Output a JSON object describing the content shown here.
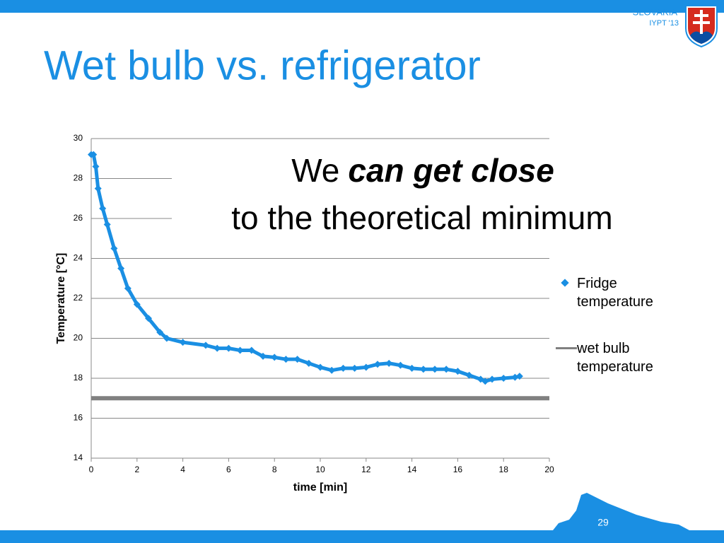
{
  "slide": {
    "title": "Wet bulb vs. refrigerator",
    "country": "SLOVAKIA",
    "event": "IYPT '13",
    "page_number": "29"
  },
  "chart_data": {
    "type": "line",
    "annotation": [
      "We",
      "can get close",
      "to the theoretical minimum"
    ],
    "x_label": "time [min]",
    "y_label": "Temperature [°C]",
    "xlim": [
      0,
      20
    ],
    "xticks": [
      0,
      2,
      4,
      6,
      8,
      10,
      12,
      14,
      16,
      18,
      20
    ],
    "ylim": [
      14,
      30
    ],
    "yticks": [
      14,
      16,
      18,
      20,
      22,
      24,
      26,
      28,
      30
    ],
    "grid": true,
    "legend": "right",
    "series": [
      {
        "name": "Fridge temperature",
        "color": "#1a8fe3",
        "marker": "diamond",
        "x": [
          0,
          0.1,
          0.2,
          0.3,
          0.5,
          0.7,
          1.0,
          1.3,
          1.6,
          2.0,
          2.5,
          3.0,
          3.3,
          4,
          5,
          5.5,
          6,
          6.5,
          7,
          7.5,
          8,
          8.5,
          9,
          9.5,
          10,
          10.5,
          11,
          11.5,
          12,
          12.5,
          13,
          13.5,
          14,
          14.5,
          15,
          15.5,
          16,
          16.5,
          17,
          17.2,
          17.5,
          18,
          18.5,
          18.7
        ],
        "values": [
          29.2,
          29.2,
          28.6,
          27.5,
          26.5,
          25.7,
          24.5,
          23.5,
          22.5,
          21.7,
          21.0,
          20.3,
          20.0,
          19.8,
          19.65,
          19.5,
          19.5,
          19.4,
          19.4,
          19.1,
          19.05,
          18.95,
          18.95,
          18.75,
          18.55,
          18.4,
          18.5,
          18.5,
          18.55,
          18.7,
          18.75,
          18.65,
          18.5,
          18.45,
          18.45,
          18.45,
          18.35,
          18.15,
          17.95,
          17.85,
          17.95,
          18.0,
          18.05,
          18.1
        ]
      },
      {
        "name": "wet bulb temperature",
        "color": "#808080",
        "marker": "none",
        "x": [
          0,
          20
        ],
        "values": [
          17,
          17
        ]
      }
    ]
  }
}
